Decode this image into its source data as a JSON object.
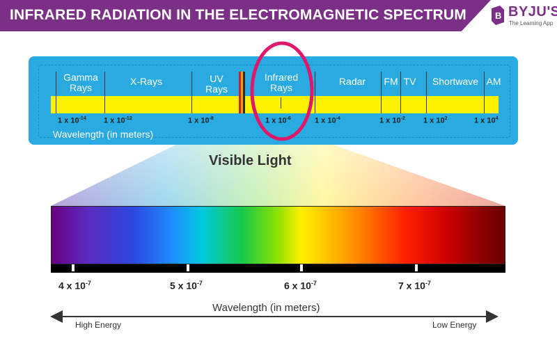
{
  "header": {
    "title": "INFRARED RADIATION IN THE ELECTROMAGNETIC SPECTRUM",
    "logo_name": "BYJU'S",
    "logo_tagline": "The Learning App"
  },
  "spectrum": {
    "regions": [
      "Gamma Rays",
      "X-Rays",
      "UV Rays",
      "Infrared Rays",
      "Radar",
      "FM",
      "TV",
      "Shortwave",
      "AM"
    ],
    "ticks": [
      {
        "base": "1 x 10",
        "exp": "-14"
      },
      {
        "base": "1 x 10",
        "exp": "-12"
      },
      {
        "base": "1 x 10",
        "exp": "-8"
      },
      {
        "base": "1 x 10",
        "exp": "-6"
      },
      {
        "base": "1 x 10",
        "exp": "-4"
      },
      {
        "base": "1 x 10",
        "exp": "-2"
      },
      {
        "base": "1 x 10",
        "exp": "2"
      },
      {
        "base": "1 x 10",
        "exp": "4"
      }
    ],
    "axis_label": "Wavelength (in meters)"
  },
  "visible": {
    "title": "Visible Light",
    "scale": [
      {
        "base": "4 x 10",
        "exp": "-7"
      },
      {
        "base": "5 x 10",
        "exp": "-7"
      },
      {
        "base": "6 x 10",
        "exp": "-7"
      },
      {
        "base": "7 x 10",
        "exp": "-7"
      }
    ],
    "axis_label": "Wavelength (in meters)",
    "energy_left": "High Energy",
    "energy_right": "Low Energy"
  },
  "colors": {
    "brand": "#7b2f86",
    "panel": "#29abe2",
    "bar": "#fff200",
    "highlight_ring": "#e0186c"
  }
}
